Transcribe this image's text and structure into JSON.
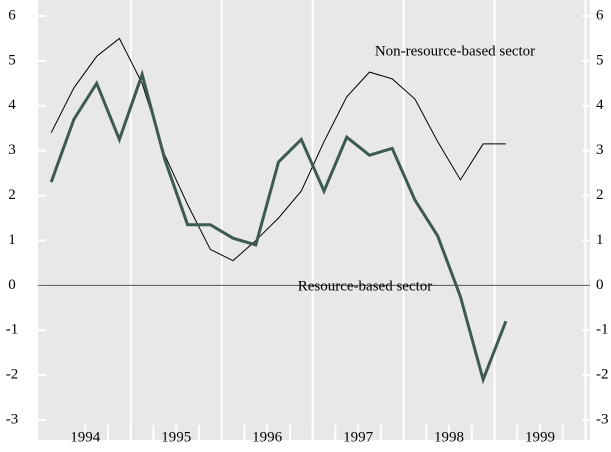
{
  "chart_data": {
    "type": "line",
    "x": [
      1993.625,
      1993.875,
      1994.125,
      1994.375,
      1994.625,
      1994.875,
      1995.125,
      1995.375,
      1995.625,
      1995.875,
      1996.125,
      1996.375,
      1996.625,
      1996.875,
      1997.125,
      1997.375,
      1997.625,
      1997.875,
      1998.125,
      1998.375,
      1998.625
    ],
    "series": [
      {
        "name": "Non-resource-based sector",
        "color": "#000000",
        "width": 1,
        "values": [
          3.4,
          4.4,
          5.1,
          5.5,
          4.5,
          2.9,
          1.8,
          0.8,
          0.55,
          1.0,
          1.5,
          2.1,
          3.2,
          4.2,
          4.75,
          4.6,
          4.15,
          3.2,
          2.35,
          3.15,
          3.15
        ]
      },
      {
        "name": "Resource-based sector",
        "color": "#3d5a4f",
        "width": 3,
        "values": [
          2.3,
          3.7,
          4.5,
          3.25,
          4.7,
          2.8,
          1.35,
          1.35,
          1.05,
          0.9,
          2.75,
          3.25,
          2.1,
          3.3,
          2.9,
          3.05,
          1.9,
          1.1,
          -0.25,
          -2.1,
          -0.8
        ]
      }
    ],
    "xlim": [
      1993.48,
      1999.55
    ],
    "xticks": [
      1994,
      1995,
      1996,
      1997,
      1998,
      1999
    ],
    "ylim": [
      -3,
      6
    ],
    "yticks": [
      -3,
      -2,
      -1,
      0,
      1,
      2,
      3,
      4,
      5,
      6
    ]
  }
}
